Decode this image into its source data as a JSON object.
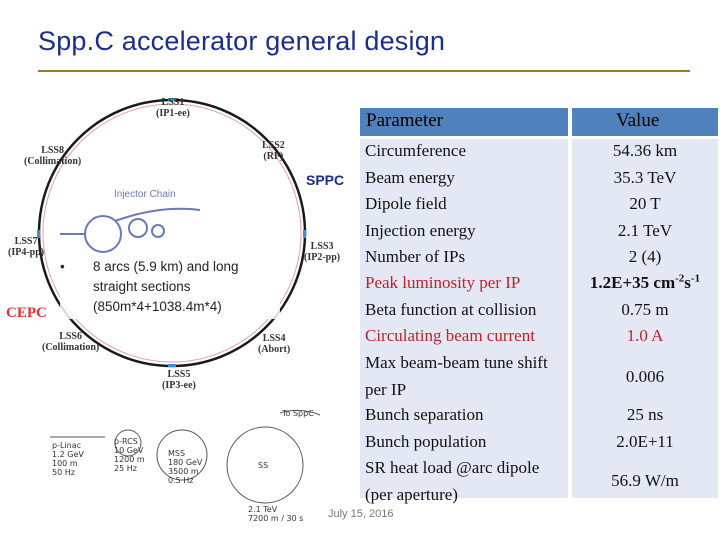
{
  "slide": {
    "title": "Spp.C accelerator general design",
    "date": "July 15, 2016"
  },
  "diagram": {
    "labels": {
      "lss1": "LSS1\n(IP1-ee)",
      "lss2": "LSS2\n(RF)",
      "lss3": "LSS3\n(IP2-pp)",
      "lss4": "LSS4\n(Abort)",
      "lss5": "LSS5\n(IP3-ee)",
      "lss6": "LSS6\n(Collimation)",
      "lss7": "LSS7\n(IP4-pp)",
      "lss8": "LSS8\n(Collimation)",
      "sppc": "SPPC",
      "cepc": "CEPC",
      "injector": "Injector Chain"
    },
    "bullet": {
      "marker": "•",
      "text": "8 arcs (5.9 km) and long straight sections (850m*4+1038.4m*4)"
    },
    "injector_sketch": {
      "plinac": "p-Linac\n1.2 GeV\n100 m\n50 Hz",
      "prcs": "p-RCS\n10 GeV\n1200 m\n25 Hz",
      "mss": "MSS\n180 GeV\n3500 m\n0.5 Hz",
      "ss": "SS",
      "ss_values": "2.1 TeV\n7200 m / 30 s",
      "to_sppc": "To SppC"
    },
    "colors": {
      "ring": "#1a1a1a",
      "accent_blue": "#6a7ab8",
      "cepc_red": "#e03030"
    }
  },
  "table": {
    "header": {
      "parameter": "Parameter",
      "value": "Value"
    },
    "rows": [
      {
        "parameter": "Circumference",
        "value": "54.36 km"
      },
      {
        "parameter": "Beam energy",
        "value": "35.3 TeV"
      },
      {
        "parameter": "Dipole field",
        "value": "20 T"
      },
      {
        "parameter": "Injection energy",
        "value": "2.1 TeV"
      },
      {
        "parameter": "Number of IPs",
        "value": "2 (4)"
      },
      {
        "parameter": "Peak luminosity per IP",
        "value_base": "1.2E+35 cm",
        "value_sup1": "-2",
        "value_mid": "s",
        "value_sup2": "-1"
      },
      {
        "parameter": "Beta function at collision",
        "value": "0.75 m"
      },
      {
        "parameter": "Circulating beam current",
        "value": "1.0  A"
      },
      {
        "parameter": "Max beam-beam tune shift per IP",
        "value": "0.006"
      },
      {
        "parameter": "Bunch separation",
        "value": "25 ns"
      },
      {
        "parameter": "Bunch population",
        "value": "2.0E+11"
      },
      {
        "parameter": "SR heat load @arc dipole (per aperture)",
        "value": "56.9 W/m"
      }
    ],
    "colors": {
      "header_bg": "#4f81bd",
      "cell_bg": "#e3e8f4",
      "highlight_red": "#c0202a"
    }
  }
}
